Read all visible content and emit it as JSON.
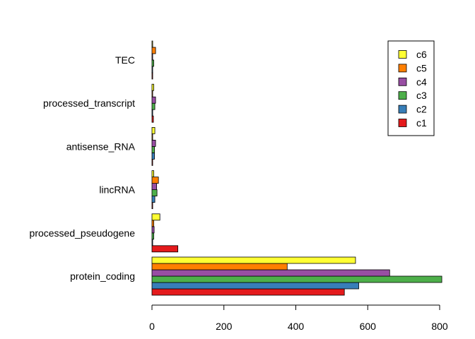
{
  "chart_data": {
    "type": "bar",
    "orientation": "horizontal",
    "grouped": true,
    "categories": [
      "protein_coding",
      "processed_pseudogene",
      "lincRNA",
      "antisense_RNA",
      "processed_transcript",
      "TEC"
    ],
    "series": [
      {
        "name": "c1",
        "color": "#E41A1C",
        "values": [
          535,
          72,
          2,
          1,
          4,
          2
        ]
      },
      {
        "name": "c2",
        "color": "#377EB8",
        "values": [
          575,
          1,
          8,
          7,
          2,
          1
        ]
      },
      {
        "name": "c3",
        "color": "#4DAF4A",
        "values": [
          806,
          5,
          14,
          7,
          8,
          5
        ]
      },
      {
        "name": "c4",
        "color": "#984EA3",
        "values": [
          661,
          6,
          13,
          10,
          10,
          1
        ]
      },
      {
        "name": "c5",
        "color": "#FF7F00",
        "values": [
          376,
          5,
          18,
          1,
          1,
          10
        ]
      },
      {
        "name": "c6",
        "color": "#FFFF33",
        "values": [
          566,
          22,
          5,
          8,
          5,
          2
        ]
      }
    ],
    "legend_order": [
      "c6",
      "c5",
      "c4",
      "c3",
      "c2",
      "c1"
    ],
    "legend_position": "top-right",
    "xlim": [
      0,
      820
    ],
    "xticks": [
      0,
      200,
      400,
      600,
      800
    ],
    "title": "",
    "xlabel": "",
    "ylabel": "",
    "grid": false
  }
}
